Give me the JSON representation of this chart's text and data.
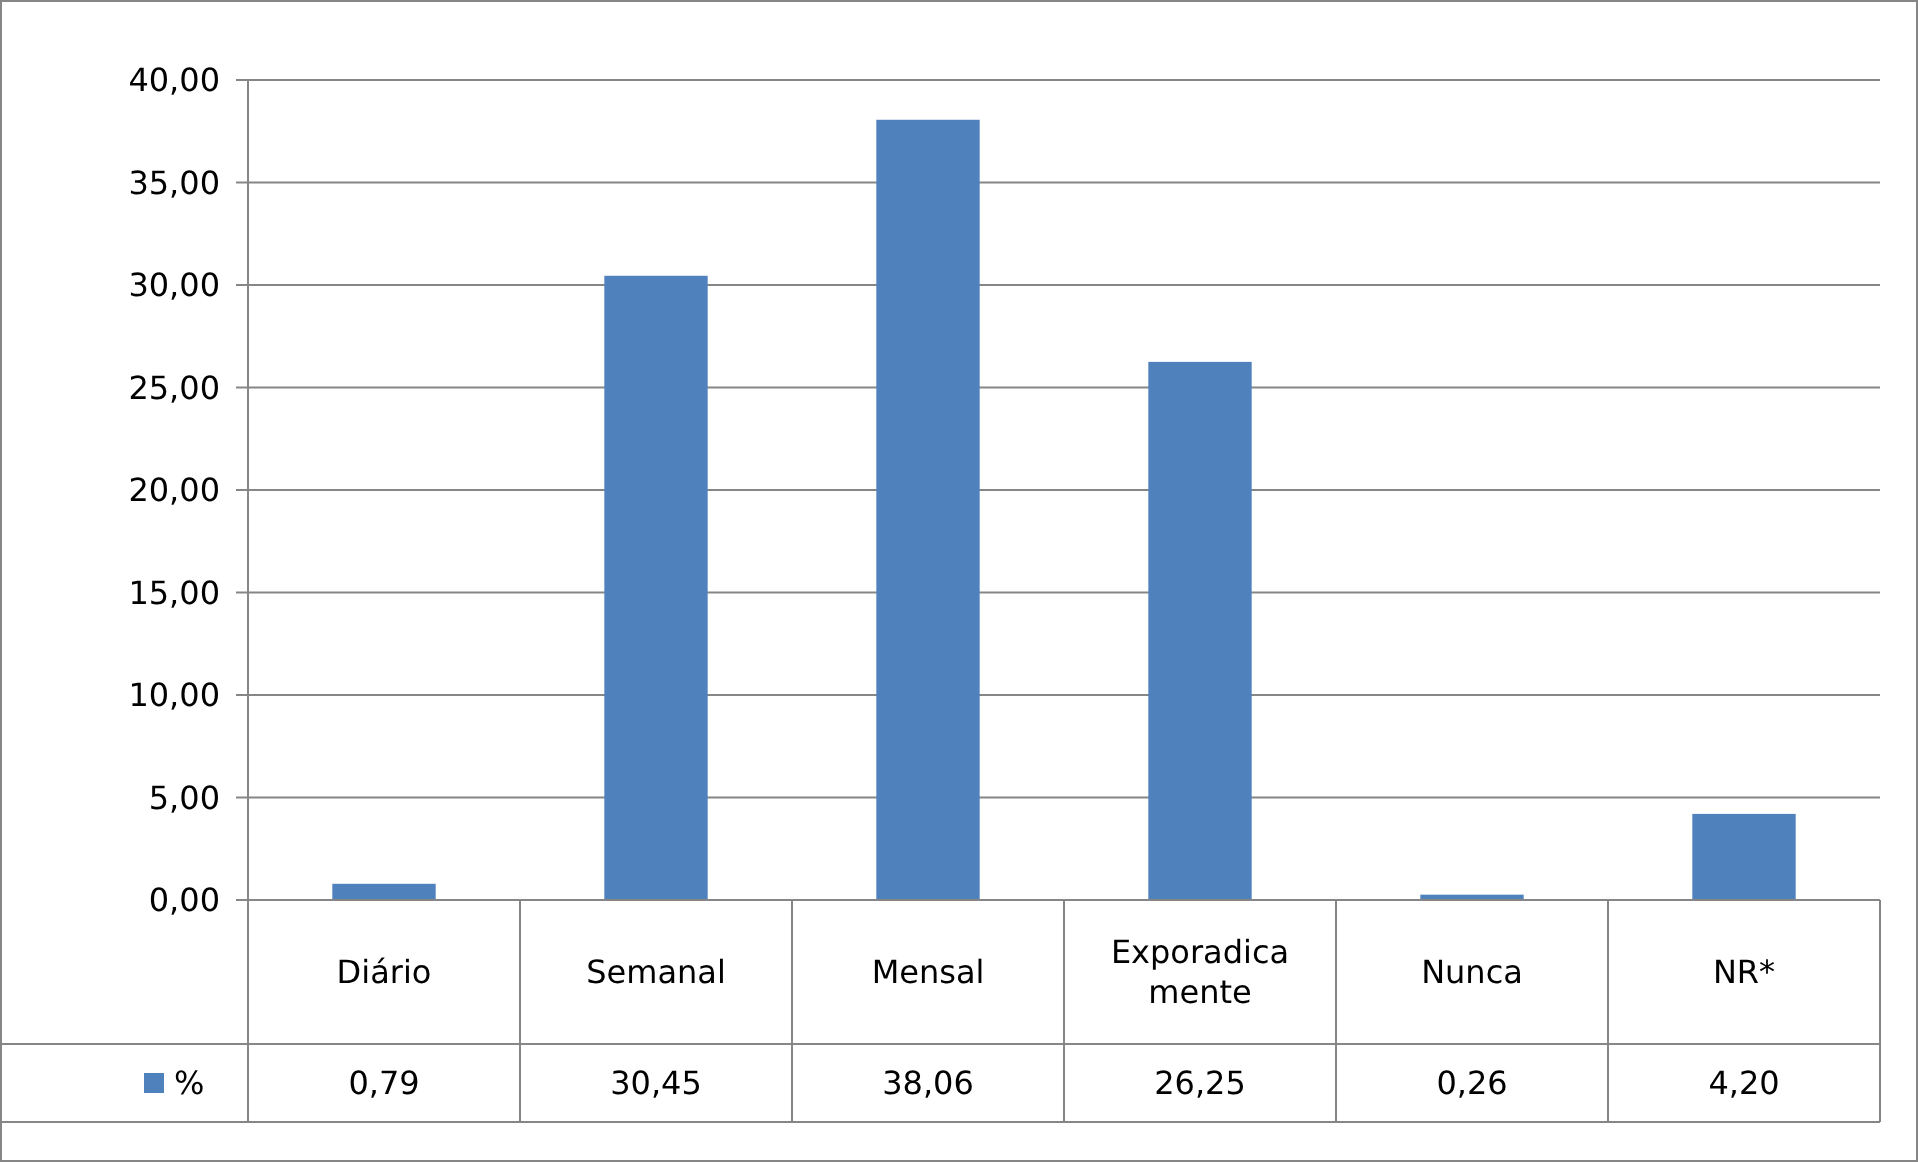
{
  "chart_data": {
    "type": "bar",
    "categories": [
      "Diário",
      "Semanal",
      "Mensal",
      "Exporadicamente",
      "Nunca",
      "NR*"
    ],
    "series": [
      {
        "name": "%",
        "color": "#4f81bd",
        "values": [
          0.79,
          30.45,
          38.06,
          26.25,
          0.26,
          4.2
        ],
        "value_labels": [
          "0,79",
          "30,45",
          "38,06",
          "26,25",
          "0,26",
          "4,20"
        ]
      }
    ],
    "ylim": [
      0,
      40
    ],
    "yticks": [
      {
        "value": 0,
        "label": "0,00"
      },
      {
        "value": 5,
        "label": "5,00"
      },
      {
        "value": 10,
        "label": "10,00"
      },
      {
        "value": 15,
        "label": "15,00"
      },
      {
        "value": 20,
        "label": "20,00"
      },
      {
        "value": 25,
        "label": "25,00"
      },
      {
        "value": 30,
        "label": "30,00"
      },
      {
        "value": 35,
        "label": "35,00"
      },
      {
        "value": 40,
        "label": "40,00"
      }
    ],
    "grid": "y",
    "legend": "bottom left"
  }
}
